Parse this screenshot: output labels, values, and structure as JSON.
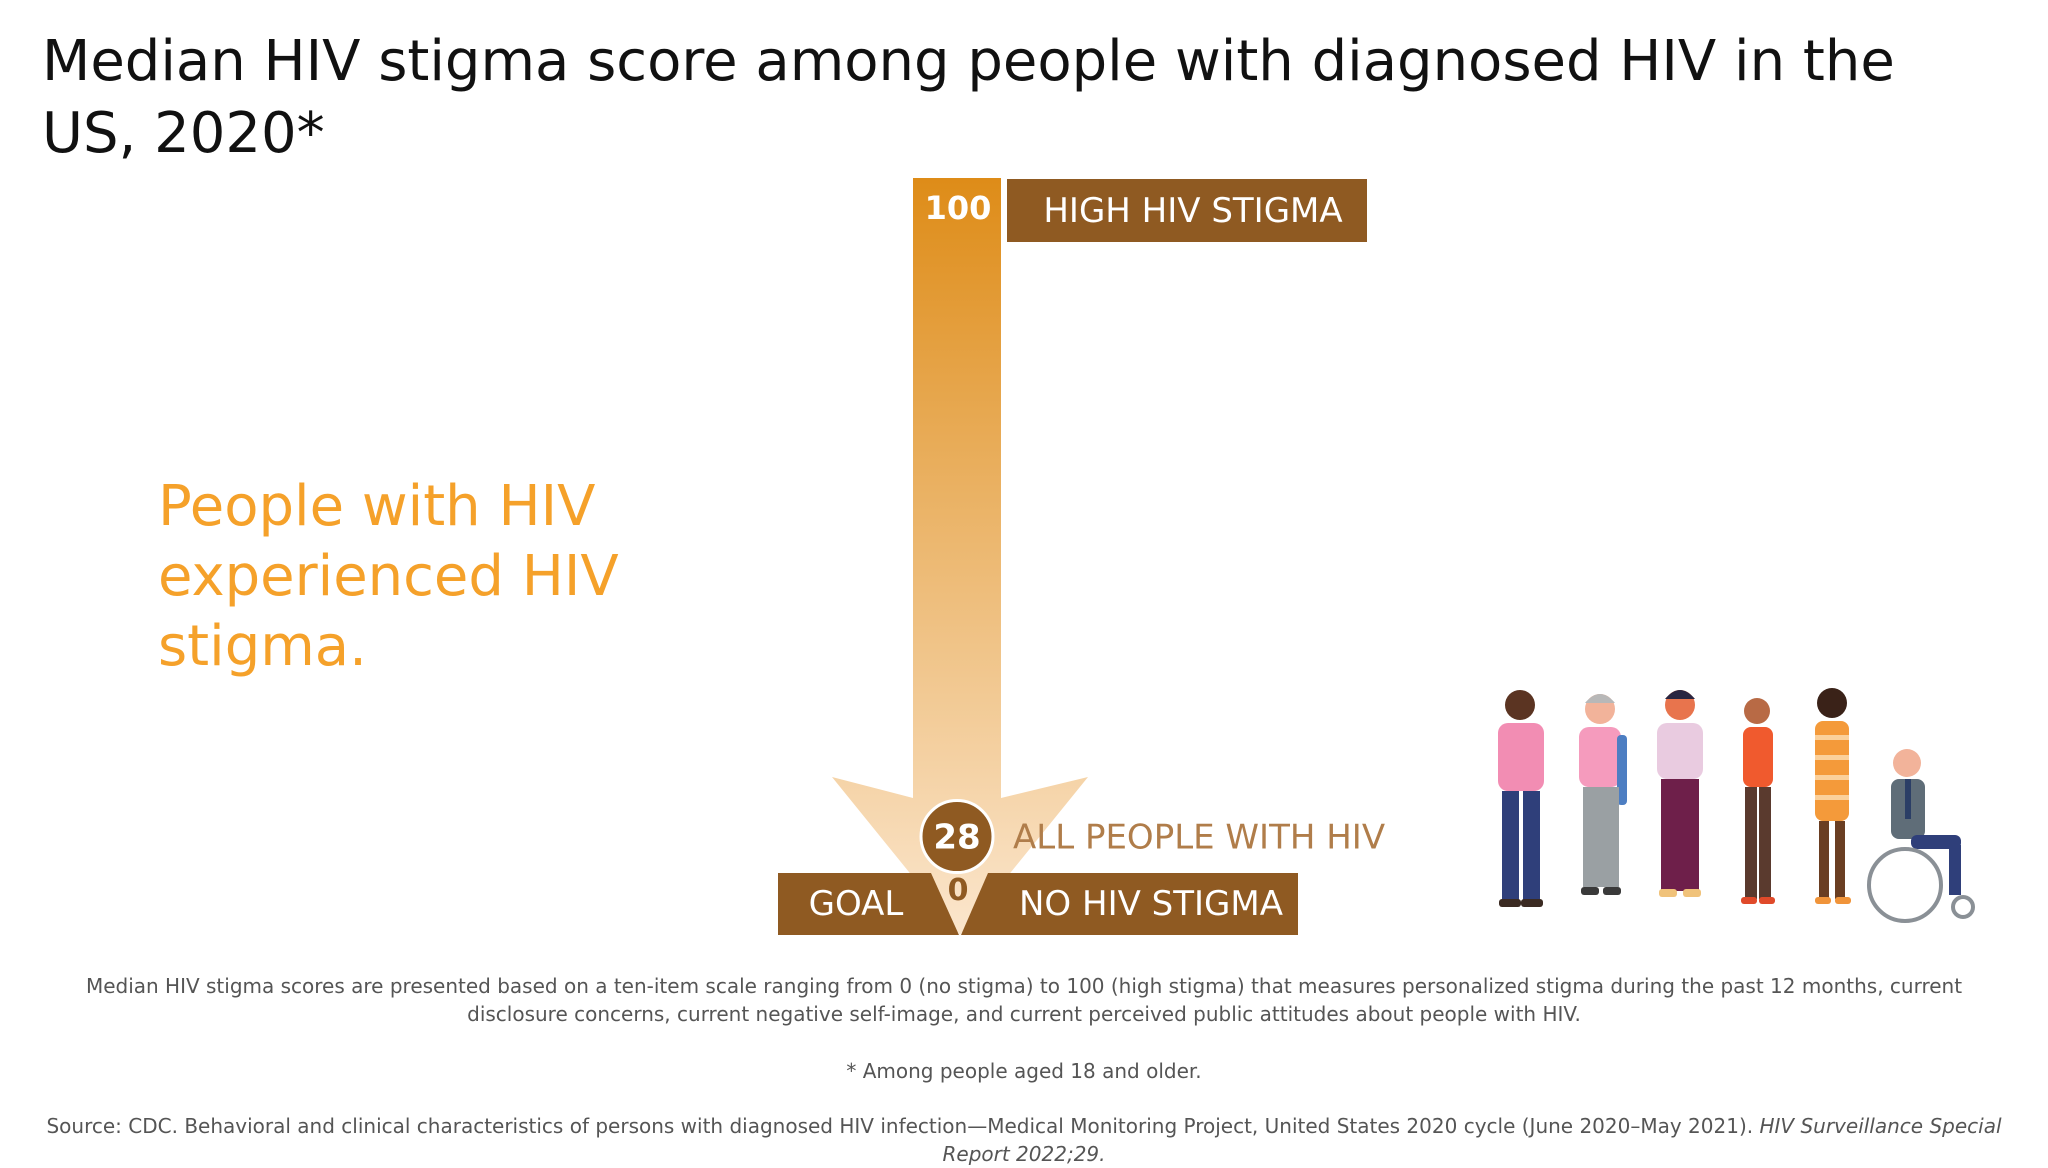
{
  "title": "Median HIV stigma score among people with diagnosed HIV in the US, 2020*",
  "callout": "People with HIV experienced HIV stigma.",
  "colors": {
    "brown": "#8f5a22",
    "orange_top": "#de8c18",
    "orange_bottom": "#fbe6cd",
    "callout": "#f5a12a",
    "label_tan": "#b07d4a"
  },
  "chart_data": {
    "type": "scale-arrow",
    "scale_min": 0,
    "scale_max": 100,
    "labels": {
      "max_value": "100",
      "max_label": "HIGH HIV STIGMA",
      "min_value": "0",
      "min_label": "NO HIV STIGMA",
      "goal_label": "GOAL"
    },
    "markers": [
      {
        "value": 28,
        "display": "28",
        "label": "ALL PEOPLE WITH HIV"
      }
    ]
  },
  "footnotes": {
    "description": "Median HIV stigma scores are presented based on a ten-item scale ranging from 0 (no stigma) to 100 (high stigma) that measures personalized stigma during the past 12 months, current disclosure concerns, current negative self-image, and current perceived public attitudes about people with HIV.",
    "age": "* Among people aged 18 and older.",
    "source_main": "Source: CDC. Behavioral and clinical characteristics of persons with diagnosed HIV infection—Medical Monitoring Project, United States 2020 cycle (June 2020–May 2021). ",
    "source_journal": "HIV Surveillance Special Report 2022;29."
  },
  "illustration": {
    "icon": "diverse-people-illustration"
  }
}
